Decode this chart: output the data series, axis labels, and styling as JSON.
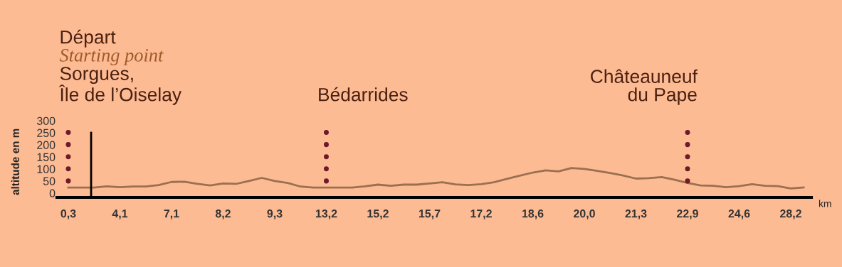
{
  "chart_data": {
    "type": "line",
    "categories": [
      "0,3",
      null,
      null,
      null,
      "4,1",
      null,
      null,
      null,
      "7,1",
      null,
      null,
      null,
      "8,2",
      null,
      null,
      null,
      "9,3",
      null,
      null,
      null,
      "13,2",
      null,
      null,
      null,
      "15,2",
      null,
      null,
      null,
      "15,7",
      null,
      null,
      null,
      "17,2",
      null,
      null,
      null,
      "18,6",
      null,
      null,
      null,
      "20,0",
      null,
      null,
      null,
      "21,3",
      null,
      null,
      null,
      "22,9",
      null,
      null,
      null,
      "24,6",
      null,
      null,
      null,
      "28,2",
      null
    ],
    "series": [
      {
        "color": "#9a7050",
        "values": [
          23,
          23,
          23,
          28,
          24,
          27,
          27,
          33,
          46,
          47,
          38,
          32,
          40,
          38,
          50,
          63,
          50,
          42,
          27,
          23,
          23,
          23,
          23,
          28,
          35,
          30,
          35,
          35,
          40,
          45,
          36,
          33,
          37,
          45,
          59,
          72,
          85,
          94,
          90,
          104,
          100,
          92,
          83,
          73,
          60,
          62,
          66,
          55,
          42,
          32,
          30,
          24,
          29,
          37,
          30,
          29,
          19,
          23
        ]
      }
    ],
    "xlabel": "km",
    "ylabel": "altitude en m",
    "ylim": [
      -18,
      310
    ],
    "yticks": [
      0,
      50,
      100,
      150,
      200,
      250,
      300
    ],
    "ref_lines": [
      {
        "axis": "x",
        "value": "0,3",
        "label": "Sorgues,\nÎle de l’Oiselay",
        "color": "#6e1a2a",
        "line_style": "dotted"
      },
      {
        "axis": "x",
        "value": "13,2",
        "label": "Bédarrides",
        "color": "#6e1a2a",
        "line_style": "dotted"
      },
      {
        "axis": "x",
        "value": "22,9",
        "label": "Châteauneuf\ndu Pape",
        "color": "#6e1a2a",
        "line_style": "dotted"
      }
    ],
    "annotations": [
      "Départ",
      "Starting point"
    ],
    "grid": false,
    "legend": false,
    "marker": "none",
    "line_style": "solid"
  }
}
